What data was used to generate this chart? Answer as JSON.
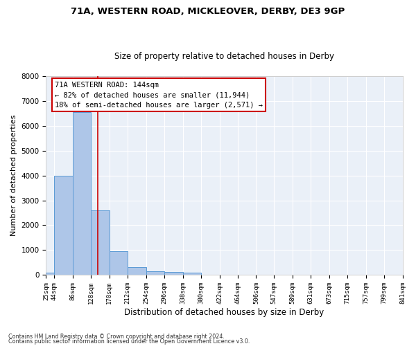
{
  "title1": "71A, WESTERN ROAD, MICKLEOVER, DERBY, DE3 9GP",
  "title2": "Size of property relative to detached houses in Derby",
  "xlabel": "Distribution of detached houses by size in Derby",
  "ylabel": "Number of detached properties",
  "footnote1": "Contains HM Land Registry data © Crown copyright and database right 2024.",
  "footnote2": "Contains public sector information licensed under the Open Government Licence v3.0.",
  "bar_edges": [
    25,
    44,
    86,
    128,
    170,
    212,
    254,
    296,
    338,
    380,
    422,
    464,
    506,
    547,
    589,
    631,
    673,
    715,
    757,
    799,
    841
  ],
  "bar_heights": [
    80,
    3980,
    6550,
    2600,
    950,
    310,
    130,
    120,
    90,
    0,
    0,
    0,
    0,
    0,
    0,
    0,
    0,
    0,
    0,
    0
  ],
  "bar_color": "#aec6e8",
  "bar_edge_color": "#5b9bd5",
  "vline_x": 144,
  "vline_color": "#cc0000",
  "annotation_line1": "71A WESTERN ROAD: 144sqm",
  "annotation_line2": "← 82% of detached houses are smaller (11,944)",
  "annotation_line3": "18% of semi-detached houses are larger (2,571) →",
  "annotation_box_color": "#cc0000",
  "annotation_text_color": "#000000",
  "ylim": [
    0,
    8000
  ],
  "yticks": [
    0,
    1000,
    2000,
    3000,
    4000,
    5000,
    6000,
    7000,
    8000
  ],
  "tick_labels": [
    "25sqm",
    "44sqm",
    "86sqm",
    "128sqm",
    "170sqm",
    "212sqm",
    "254sqm",
    "296sqm",
    "338sqm",
    "380sqm",
    "422sqm",
    "464sqm",
    "506sqm",
    "547sqm",
    "589sqm",
    "631sqm",
    "673sqm",
    "715sqm",
    "757sqm",
    "799sqm",
    "841sqm"
  ],
  "bg_color": "#eaf0f8",
  "grid_color": "#ffffff",
  "title1_fontsize": 9.5,
  "title2_fontsize": 8.5,
  "xlabel_fontsize": 8.5,
  "ylabel_fontsize": 8,
  "tick_fontsize": 6.5,
  "ytick_fontsize": 7.5,
  "annotation_fontsize": 7.5,
  "footnote_fontsize": 5.8
}
